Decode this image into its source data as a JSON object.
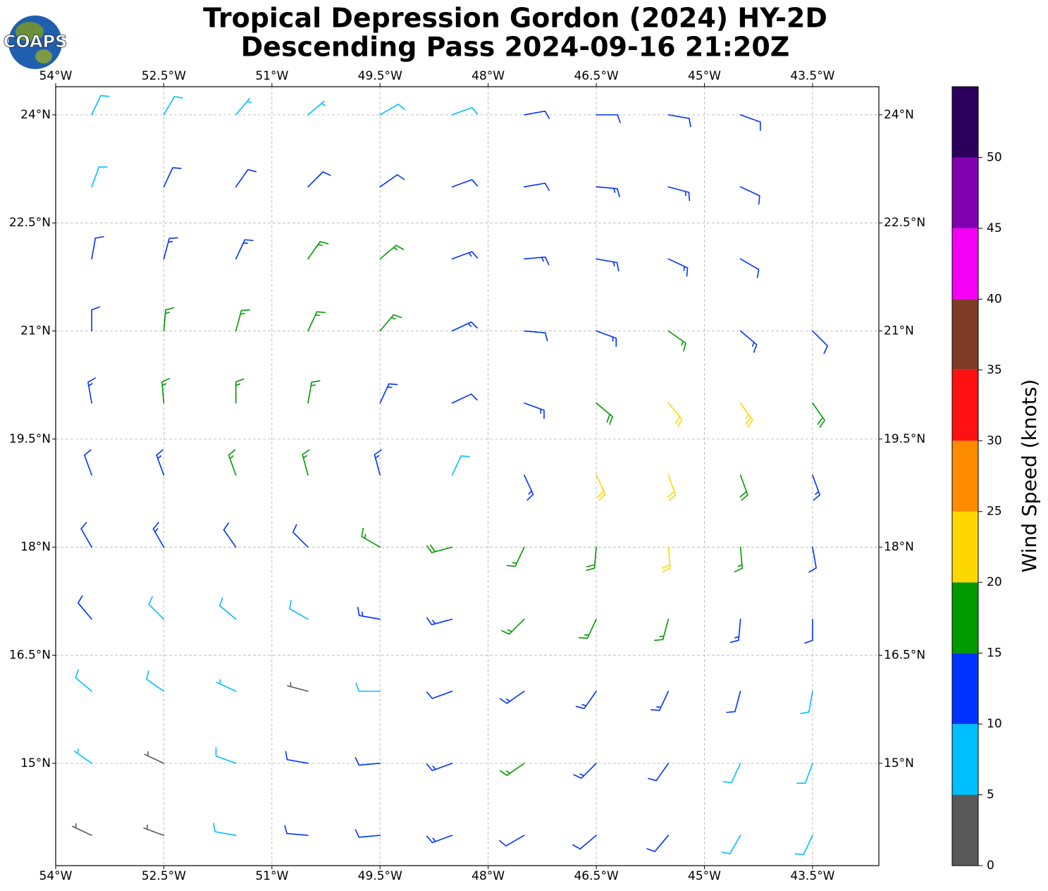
{
  "map_data": {
    "logo_text": "COAPS",
    "title_lines": [
      "Tropical Depression Gordon (2024) HY-2D",
      "Descending Pass 2024-09-16 21:20Z"
    ],
    "xlim": [
      -54,
      -42.58
    ],
    "ylim": [
      13.58,
      24.39
    ],
    "xticks": [
      {
        "value": -54,
        "label": "54°W"
      },
      {
        "value": -52.5,
        "label": "52.5°W"
      },
      {
        "value": -51,
        "label": "51°W"
      },
      {
        "value": -49.5,
        "label": "49.5°W"
      },
      {
        "value": -48,
        "label": "48°W"
      },
      {
        "value": -46.5,
        "label": "46.5°W"
      },
      {
        "value": -45,
        "label": "45°W"
      },
      {
        "value": -43.5,
        "label": "43.5°W"
      }
    ],
    "yticks": [
      {
        "value": 24,
        "label": "24°N"
      },
      {
        "value": 22.5,
        "label": "22.5°N"
      },
      {
        "value": 21,
        "label": "21°N"
      },
      {
        "value": 19.5,
        "label": "19.5°N"
      },
      {
        "value": 18,
        "label": "18°N"
      },
      {
        "value": 16.5,
        "label": "16.5°N"
      },
      {
        "value": 15,
        "label": "15°N"
      }
    ],
    "grid": true,
    "colorbar": {
      "label": "Wind Speed (knots)",
      "bounds": [
        0,
        5,
        10,
        15,
        20,
        25,
        30,
        35,
        40,
        45,
        50,
        55
      ],
      "colors": [
        "#595959",
        "#00bfff",
        "#0033ff",
        "#009900",
        "#ffd700",
        "#ff8c00",
        "#ff1111",
        "#7f3b28",
        "#f500f5",
        "#8000b0",
        "#2b005c"
      ],
      "ticks": [
        0,
        5,
        10,
        15,
        20,
        25,
        30,
        35,
        40,
        45,
        50
      ]
    },
    "barbs": {
      "lon": [
        -53.5,
        -52.5,
        -51.5,
        -50.5,
        -49.5,
        -48.5,
        -47.5,
        -46.5,
        -45.5,
        -44.5,
        -53.5,
        -52.5,
        -51.5,
        -50.5,
        -49.5,
        -48.5,
        -47.5,
        -46.5,
        -45.5,
        -44.5,
        -53.5,
        -52.5,
        -51.5,
        -50.5,
        -49.5,
        -48.5,
        -47.5,
        -46.5,
        -45.5,
        -44.5,
        -53.5,
        -52.5,
        -51.5,
        -50.5,
        -49.5,
        -48.5,
        -47.5,
        -46.5,
        -45.5,
        -44.5,
        -43.5,
        -53.5,
        -52.5,
        -51.5,
        -50.5,
        -49.5,
        -48.5,
        -47.5,
        -46.5,
        -45.5,
        -44.5,
        -43.5,
        -53.5,
        -52.5,
        -51.5,
        -50.5,
        -49.5,
        -48.5,
        -47.5,
        -46.5,
        -45.5,
        -44.5,
        -43.5,
        -53.5,
        -52.5,
        -51.5,
        -50.5,
        -49.5,
        -48.5,
        -47.5,
        -46.5,
        -45.5,
        -44.5,
        -43.5,
        -53.5,
        -52.5,
        -51.5,
        -50.5,
        -49.5,
        -48.5,
        -47.5,
        -46.5,
        -45.5,
        -44.5,
        -43.5,
        -53.5,
        -52.5,
        -51.5,
        -50.5,
        -49.5,
        -48.5,
        -47.5,
        -46.5,
        -45.5,
        -44.5,
        -43.5,
        -53.5,
        -52.5,
        -51.5,
        -50.5,
        -49.5,
        -48.5,
        -47.5,
        -46.5,
        -45.5,
        -44.5,
        -43.5,
        -53.5,
        -52.5,
        -51.5,
        -50.5,
        -49.5,
        -48.5,
        -47.5,
        -46.5,
        -45.5,
        -44.5,
        -43.5
      ],
      "lat": [
        24,
        24,
        24,
        24,
        24,
        24,
        24,
        24,
        24,
        24,
        23,
        23,
        23,
        23,
        23,
        23,
        23,
        23,
        23,
        23,
        22,
        22,
        22,
        22,
        22,
        22,
        22,
        22,
        22,
        22,
        21,
        21,
        21,
        21,
        21,
        21,
        21,
        21,
        21,
        21,
        21,
        20,
        20,
        20,
        20,
        20,
        20,
        20,
        20,
        20,
        20,
        20,
        19,
        19,
        19,
        19,
        19,
        19,
        19,
        19,
        19,
        19,
        19,
        18,
        18,
        18,
        18,
        18,
        18,
        18,
        18,
        18,
        18,
        18,
        17,
        17,
        17,
        17,
        17,
        17,
        17,
        17,
        17,
        17,
        17,
        16,
        16,
        16,
        16,
        16,
        16,
        16,
        16,
        16,
        16,
        16,
        15,
        15,
        15,
        15,
        15,
        15,
        15,
        15,
        15,
        15,
        15,
        14,
        14,
        14,
        14,
        14,
        14,
        14,
        14,
        14,
        14,
        14
      ],
      "speed": [
        8,
        8,
        7,
        6,
        8,
        9,
        11,
        12,
        12,
        12,
        9,
        11,
        12,
        12,
        12,
        11,
        12,
        13,
        13,
        12,
        12,
        13,
        14,
        16,
        16,
        14,
        13,
        13,
        13,
        12,
        12,
        16,
        17,
        17,
        15,
        13,
        12,
        13,
        16,
        13,
        12,
        13,
        17,
        17,
        16,
        13,
        11,
        14,
        19,
        20,
        23,
        18,
        12,
        14,
        17,
        17,
        13,
        8,
        14,
        20,
        22,
        18,
        13,
        11,
        13,
        12,
        11,
        15,
        18,
        17,
        18,
        21,
        16,
        12,
        11,
        9,
        8,
        9,
        13,
        14,
        16,
        16,
        17,
        14,
        11,
        9,
        8,
        5,
        4,
        9,
        11,
        13,
        14,
        14,
        12,
        9,
        7,
        3,
        8,
        11,
        12,
        13,
        15,
        13,
        12,
        9,
        8,
        3,
        4,
        8,
        10,
        12,
        13,
        12,
        11,
        10,
        8,
        8
      ],
      "direction": [
        25,
        30,
        40,
        50,
        60,
        70,
        80,
        90,
        100,
        110,
        20,
        25,
        35,
        45,
        55,
        70,
        80,
        95,
        105,
        115,
        10,
        15,
        25,
        35,
        50,
        70,
        85,
        100,
        115,
        120,
        0,
        5,
        15,
        25,
        40,
        65,
        95,
        110,
        125,
        130,
        135,
        350,
        355,
        0,
        10,
        25,
        65,
        110,
        130,
        140,
        145,
        145,
        340,
        340,
        340,
        345,
        345,
        25,
        155,
        155,
        160,
        160,
        160,
        330,
        330,
        325,
        315,
        300,
        255,
        205,
        185,
        175,
        175,
        170,
        320,
        315,
        310,
        300,
        280,
        255,
        225,
        205,
        195,
        185,
        180,
        310,
        305,
        295,
        285,
        270,
        250,
        235,
        215,
        205,
        195,
        190,
        305,
        295,
        290,
        280,
        265,
        250,
        235,
        225,
        215,
        205,
        200,
        295,
        290,
        280,
        275,
        265,
        250,
        240,
        230,
        220,
        210,
        205
      ]
    }
  }
}
